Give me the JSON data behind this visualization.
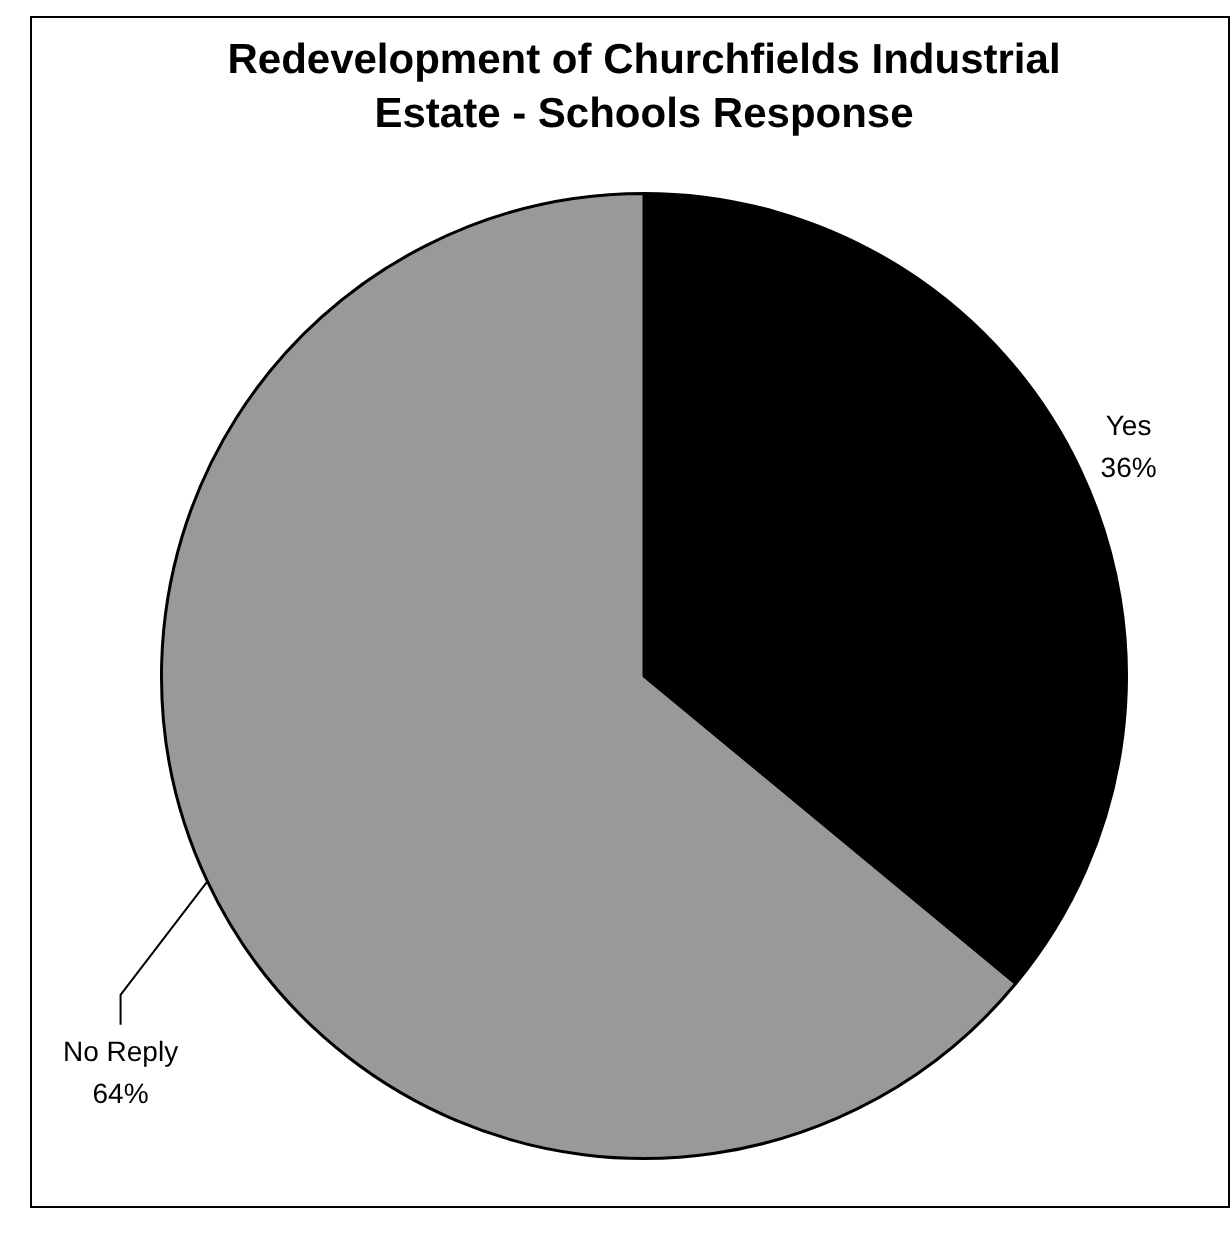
{
  "chart_data": {
    "type": "pie",
    "title": "Redevelopment of Churchfields Industrial Estate - Schools Response",
    "categories": [
      "Yes",
      "No Reply"
    ],
    "values": [
      36,
      64
    ],
    "colors": [
      "#000000",
      "#999999"
    ],
    "value_labels": [
      "36%",
      "64%"
    ],
    "legend": false
  }
}
